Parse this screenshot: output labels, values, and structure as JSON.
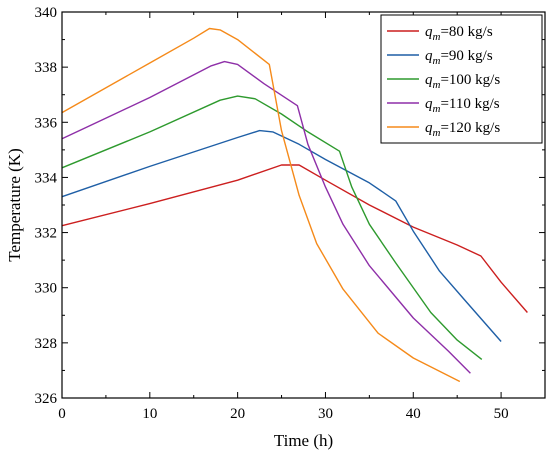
{
  "chart_data": {
    "type": "line",
    "xlabel": "Time (h)",
    "ylabel": "Temperature (K)",
    "xlim": [
      0,
      55
    ],
    "ylim": [
      326,
      340
    ],
    "xticks": [
      0,
      10,
      20,
      30,
      40,
      50
    ],
    "yticks": [
      326,
      328,
      330,
      332,
      334,
      336,
      338,
      340
    ],
    "grid": false,
    "legend_position": "top-right",
    "series": [
      {
        "name_prefix": "q",
        "name_subscript": "m",
        "name_suffix": "=80 kg/s",
        "color": "#cc1f1f",
        "points": [
          [
            0,
            332.25
          ],
          [
            10,
            333.05
          ],
          [
            20,
            333.9
          ],
          [
            25,
            334.45
          ],
          [
            27,
            334.45
          ],
          [
            30,
            333.9
          ],
          [
            35,
            333.0
          ],
          [
            40,
            332.2
          ],
          [
            45,
            331.55
          ],
          [
            47.7,
            331.15
          ],
          [
            50,
            330.2
          ],
          [
            53,
            329.1
          ]
        ]
      },
      {
        "name_prefix": "q",
        "name_subscript": "m",
        "name_suffix": "=90 kg/s",
        "color": "#1f5fa6",
        "points": [
          [
            0,
            333.3
          ],
          [
            10,
            334.4
          ],
          [
            20,
            335.45
          ],
          [
            22.5,
            335.7
          ],
          [
            24,
            335.65
          ],
          [
            27,
            335.2
          ],
          [
            30,
            334.65
          ],
          [
            35,
            333.8
          ],
          [
            38,
            333.15
          ],
          [
            40,
            332.05
          ],
          [
            43,
            330.6
          ],
          [
            46,
            329.5
          ],
          [
            50,
            328.05
          ]
        ]
      },
      {
        "name_prefix": "q",
        "name_subscript": "m",
        "name_suffix": "=100 kg/s",
        "color": "#2e9a2e",
        "points": [
          [
            0,
            334.35
          ],
          [
            10,
            335.65
          ],
          [
            18,
            336.8
          ],
          [
            20,
            336.95
          ],
          [
            22,
            336.85
          ],
          [
            25,
            336.3
          ],
          [
            28,
            335.65
          ],
          [
            31.6,
            334.95
          ],
          [
            33,
            333.65
          ],
          [
            35,
            332.3
          ],
          [
            38,
            330.9
          ],
          [
            42,
            329.1
          ],
          [
            45,
            328.1
          ],
          [
            47.8,
            327.4
          ]
        ]
      },
      {
        "name_prefix": "q",
        "name_subscript": "m",
        "name_suffix": "=110 kg/s",
        "color": "#8e2fa8",
        "points": [
          [
            0,
            335.4
          ],
          [
            10,
            336.9
          ],
          [
            17,
            338.05
          ],
          [
            18.5,
            338.2
          ],
          [
            20,
            338.1
          ],
          [
            23,
            337.4
          ],
          [
            26.8,
            336.6
          ],
          [
            28,
            335.2
          ],
          [
            30,
            333.65
          ],
          [
            32,
            332.3
          ],
          [
            35,
            330.8
          ],
          [
            40,
            328.9
          ],
          [
            44,
            327.7
          ],
          [
            46.5,
            326.9
          ]
        ]
      },
      {
        "name_prefix": "q",
        "name_subscript": "m",
        "name_suffix": "=120 kg/s",
        "color": "#f58a1a",
        "points": [
          [
            0,
            336.35
          ],
          [
            10,
            338.15
          ],
          [
            15,
            339.05
          ],
          [
            16.8,
            339.4
          ],
          [
            18,
            339.35
          ],
          [
            20,
            339.0
          ],
          [
            23.6,
            338.1
          ],
          [
            25,
            335.7
          ],
          [
            27,
            333.35
          ],
          [
            29,
            331.6
          ],
          [
            32,
            329.95
          ],
          [
            36,
            328.35
          ],
          [
            40,
            327.45
          ],
          [
            45.3,
            326.6
          ]
        ]
      }
    ]
  }
}
